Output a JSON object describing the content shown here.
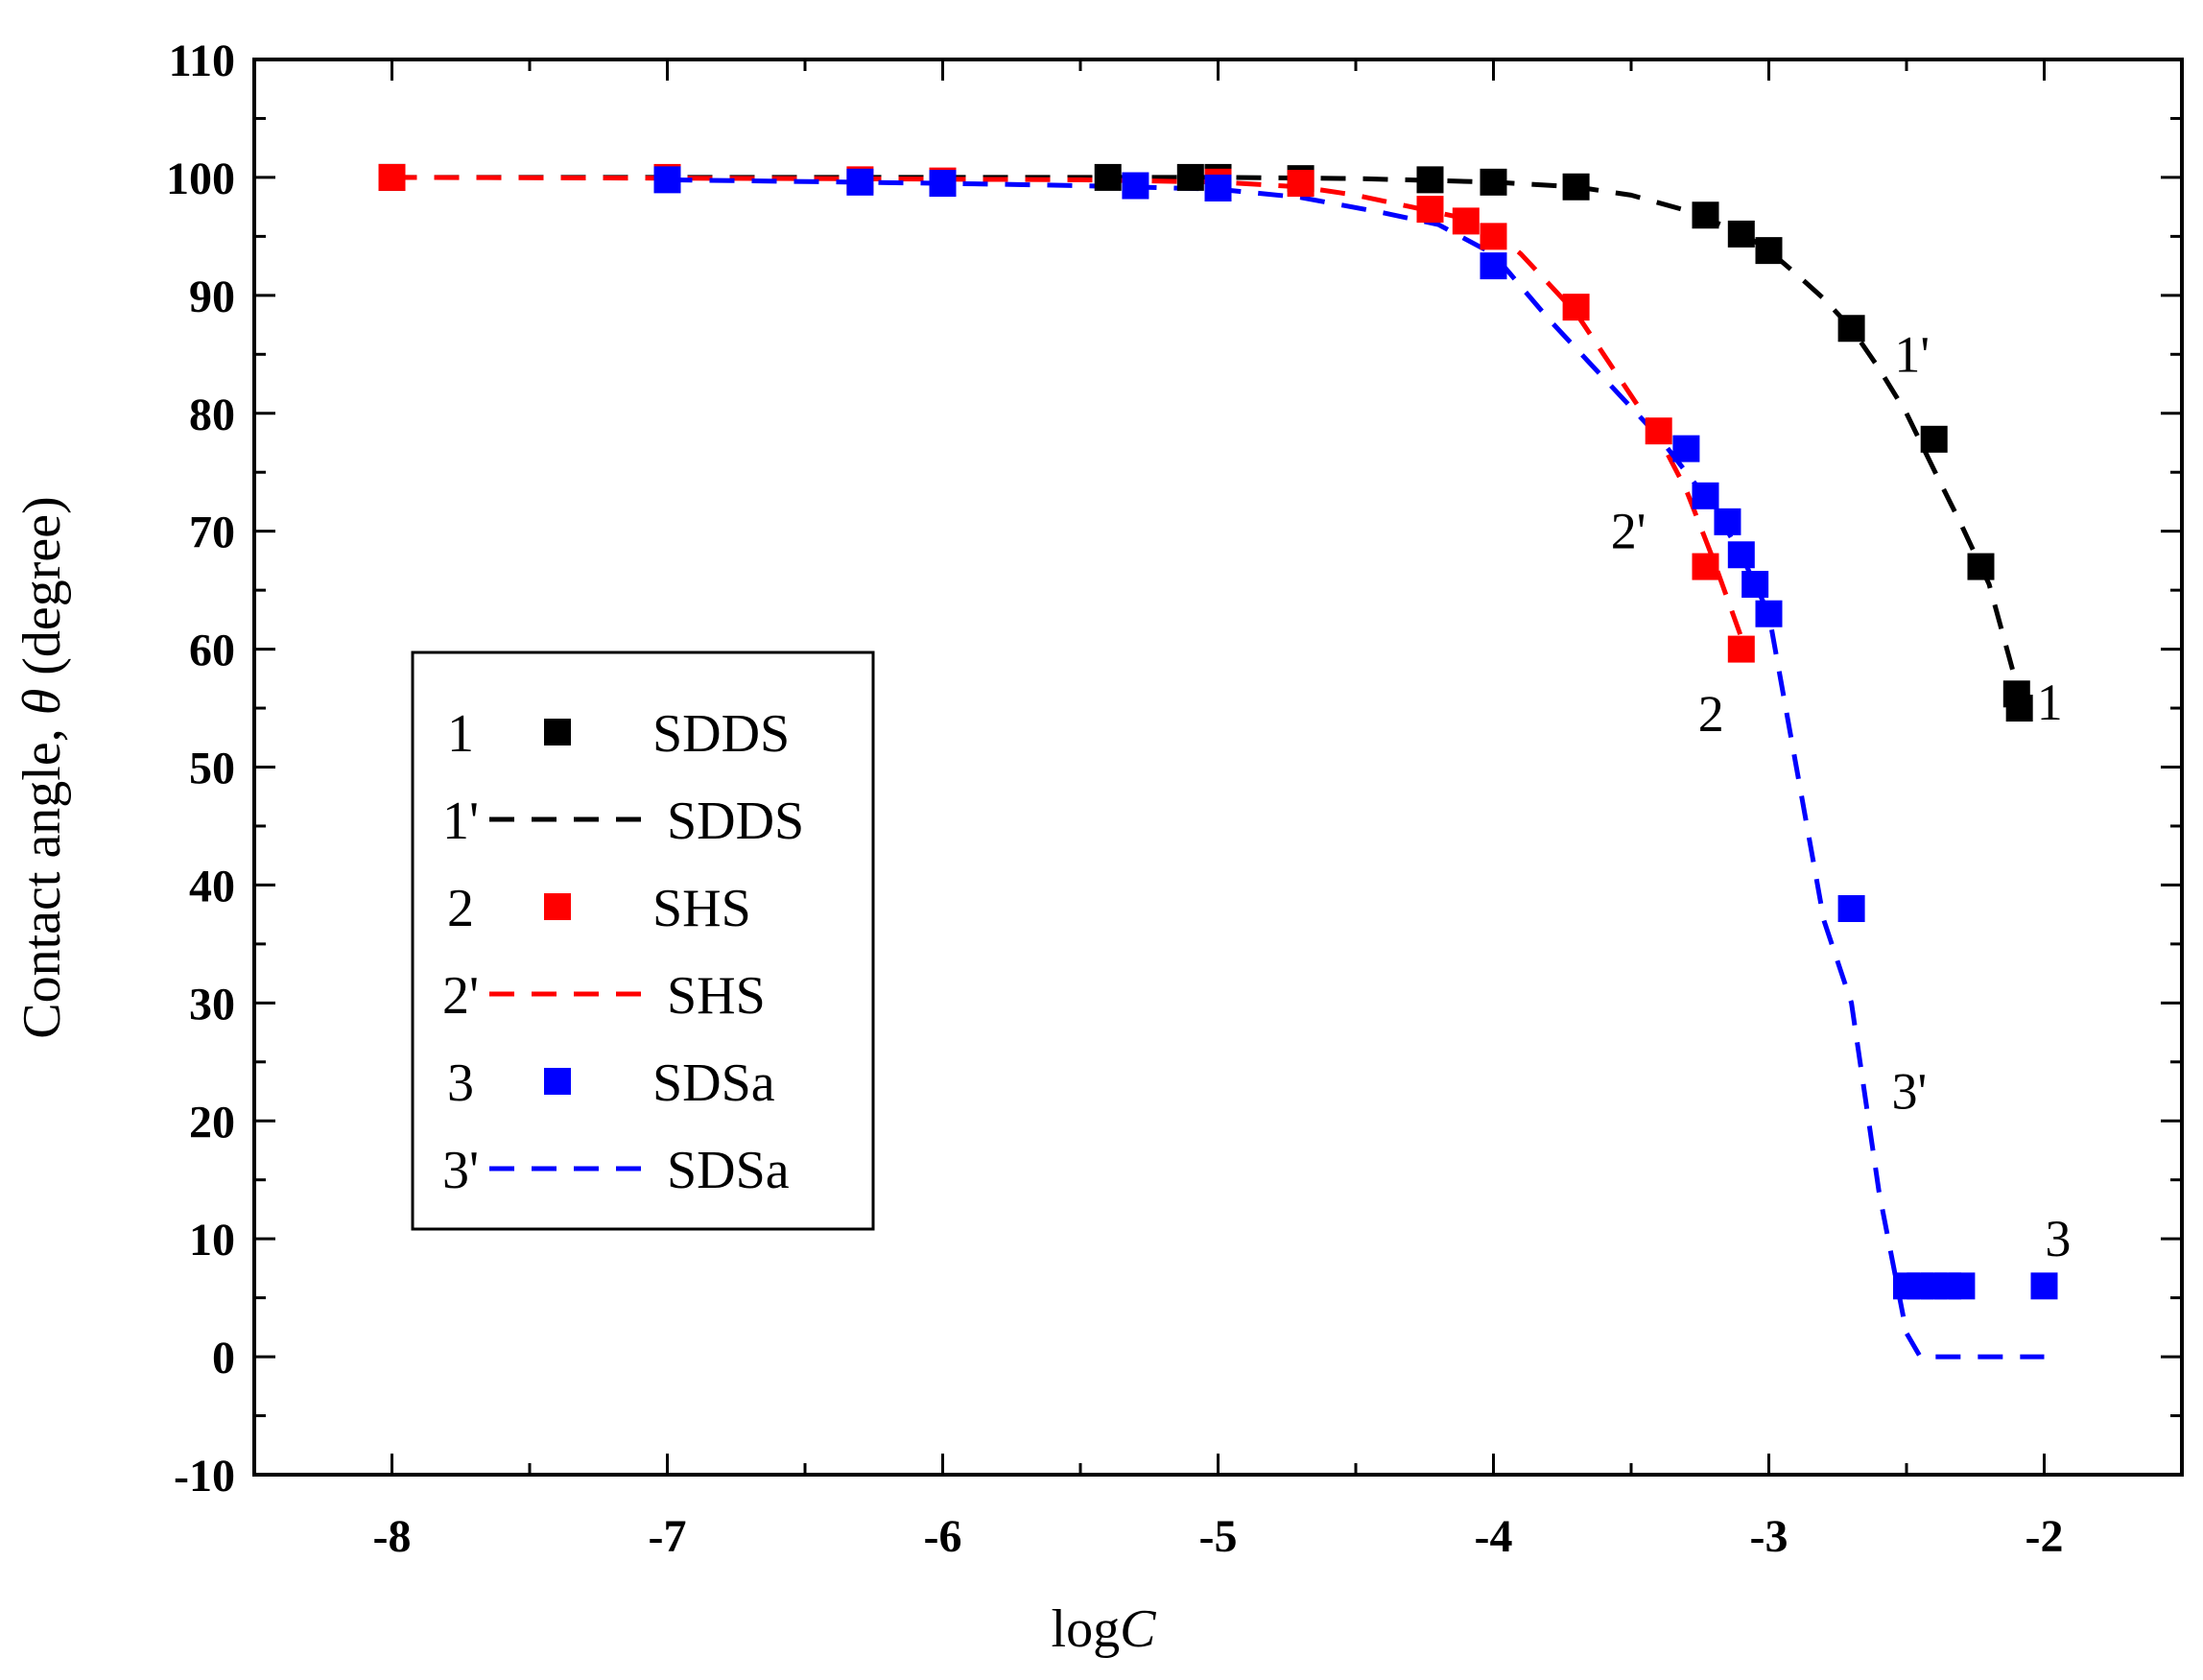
{
  "chart_data": {
    "type": "scatter",
    "xlabel_prefix": "log",
    "xlabel_var": "C",
    "ylabel_prefix": "Contact angle, ",
    "ylabel_var": "θ",
    "ylabel_suffix": " (degree)",
    "xlim": [
      -8.5,
      -1.5
    ],
    "ylim": [
      -10,
      110
    ],
    "x_ticks": [
      -8,
      -7,
      -6,
      -5,
      -4,
      -3,
      -2
    ],
    "y_ticks": [
      -10,
      0,
      10,
      20,
      30,
      40,
      50,
      60,
      70,
      80,
      90,
      100,
      110
    ],
    "grid": false,
    "legend_position": "lower-left",
    "series": [
      {
        "id": "1",
        "name": "SDDS",
        "kind": "points",
        "color": "#000000",
        "x": [
          -8,
          -5.4,
          -5.1,
          -5.0,
          -4.7,
          -4.23,
          -4.0,
          -3.7,
          -3.23,
          -3.1,
          -3.0,
          -2.7,
          -2.4,
          -2.23,
          -2.1,
          -2.09
        ],
        "y": [
          100,
          100,
          100,
          100,
          99.9,
          99.8,
          99.6,
          99.2,
          96.8,
          95.2,
          93.8,
          87.2,
          77.8,
          67,
          56.2,
          55
        ]
      },
      {
        "id": "1'",
        "name": "SDDS",
        "kind": "line",
        "color": "#000000",
        "x": [
          -8,
          -6,
          -5,
          -4.5,
          -4,
          -3.7,
          -3.5,
          -3.3,
          -3.1,
          -3.0,
          -2.9,
          -2.8,
          -2.7,
          -2.6,
          -2.5,
          -2.4,
          -2.3,
          -2.2,
          -2.1
        ],
        "y": [
          100,
          100,
          100,
          99.9,
          99.6,
          99.2,
          98.5,
          97.2,
          95.3,
          93.8,
          91.8,
          89.7,
          87.2,
          83.8,
          80,
          75.2,
          70.5,
          65.5,
          57
        ]
      },
      {
        "id": "2",
        "name": "SHS",
        "kind": "points",
        "color": "#ff0000",
        "x": [
          -8,
          -7,
          -6.3,
          -6,
          -5,
          -4.7,
          -4.23,
          -4.1,
          -4.0,
          -3.7,
          -3.4,
          -3.23,
          -3.1
        ],
        "y": [
          100,
          100,
          99.8,
          99.7,
          99.6,
          99.5,
          97.3,
          96.3,
          95,
          89,
          78.5,
          67,
          60
        ]
      },
      {
        "id": "2'",
        "name": "SHS",
        "kind": "line",
        "color": "#ff0000",
        "x": [
          -8,
          -6.5,
          -5.5,
          -5,
          -4.7,
          -4.5,
          -4.3,
          -4.1,
          -4.0,
          -3.9,
          -3.8,
          -3.7,
          -3.6,
          -3.5,
          -3.4,
          -3.3,
          -3.2,
          -3.1
        ],
        "y": [
          100,
          99.9,
          99.8,
          99.6,
          99.2,
          98.5,
          97.5,
          96.5,
          95.5,
          93.5,
          91,
          88.5,
          85,
          81.5,
          78,
          73.5,
          67.5,
          61
        ]
      },
      {
        "id": "3",
        "name": "SDSa",
        "kind": "points",
        "color": "#0000ff",
        "x": [
          -7,
          -6.3,
          -6,
          -5.3,
          -5,
          -4.0,
          -3.3,
          -3.23,
          -3.15,
          -3.1,
          -3.05,
          -3.0,
          -2.7,
          -2.5,
          -2.45,
          -2.4,
          -2.35,
          -2.3,
          -2.0
        ],
        "y": [
          99.8,
          99.6,
          99.5,
          99.3,
          99.1,
          92.5,
          77,
          73,
          70.8,
          68,
          65.5,
          63,
          38,
          6,
          6,
          6,
          6,
          6,
          6
        ]
      },
      {
        "id": "3'",
        "name": "SDSa",
        "kind": "line",
        "color": "#0000ff",
        "x": [
          -7,
          -6,
          -5.5,
          -5.0,
          -4.7,
          -4.4,
          -4.2,
          -4.0,
          -3.8,
          -3.6,
          -3.4,
          -3.2,
          -3.1,
          -3.0,
          -2.9,
          -2.8,
          -2.7,
          -2.6,
          -2.5,
          -2.45,
          -2.3,
          -2.0
        ],
        "y": [
          99.8,
          99.5,
          99.3,
          99,
          98.3,
          97,
          96,
          93.5,
          88,
          83,
          78,
          72,
          68,
          63,
          50,
          37,
          30,
          14,
          2,
          0,
          0,
          0
        ]
      }
    ],
    "annotations": [
      {
        "text": "1'",
        "x": -2.48,
        "y": 85
      },
      {
        "text": "1",
        "x": -1.98,
        "y": 55.5
      },
      {
        "text": "2'",
        "x": -3.51,
        "y": 70
      },
      {
        "text": "2",
        "x": -3.21,
        "y": 54.5
      },
      {
        "text": "3'",
        "x": -2.49,
        "y": 22.5
      },
      {
        "text": "3",
        "x": -1.95,
        "y": 10
      }
    ],
    "legend": [
      {
        "label": "1",
        "name": "SDDS",
        "kind": "points",
        "color": "#000000"
      },
      {
        "label": "1'",
        "name": "SDDS",
        "kind": "line",
        "color": "#000000"
      },
      {
        "label": "2",
        "name": "SHS",
        "kind": "points",
        "color": "#ff0000"
      },
      {
        "label": "2'",
        "name": "SHS",
        "kind": "line",
        "color": "#ff0000"
      },
      {
        "label": "3",
        "name": "SDSa",
        "kind": "points",
        "color": "#0000ff"
      },
      {
        "label": "3'",
        "name": "SDSa",
        "kind": "line",
        "color": "#0000ff"
      }
    ]
  }
}
